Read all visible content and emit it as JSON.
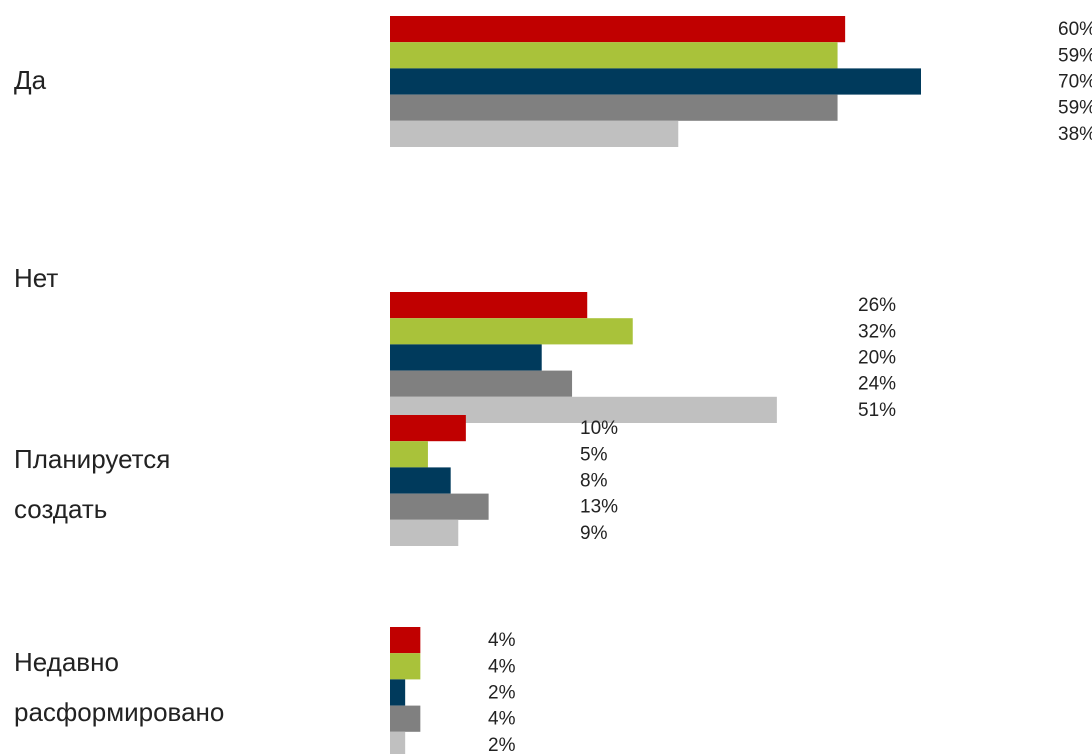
{
  "chart_data": {
    "type": "bar",
    "orientation": "horizontal",
    "categories": [
      "Да",
      "Нет",
      "Планируется создать",
      "Недавно расформировано"
    ],
    "xlim": [
      0,
      70
    ],
    "series": [
      {
        "color": "#c00000",
        "values": [
          60,
          26,
          10,
          4
        ],
        "value_labels": [
          "60%",
          "26%",
          "10%",
          "4%"
        ]
      },
      {
        "color": "#a9c23a",
        "values": [
          59,
          32,
          5,
          4
        ],
        "value_labels": [
          "59%",
          "32%",
          "5%",
          "4%"
        ]
      },
      {
        "color": "#003a5c",
        "values": [
          70,
          20,
          8,
          2
        ],
        "value_labels": [
          "70%",
          "20%",
          "8%",
          "2%"
        ]
      },
      {
        "color": "#808080",
        "values": [
          59,
          24,
          13,
          4
        ],
        "value_labels": [
          "59%",
          "24%",
          "13%",
          "4%"
        ]
      },
      {
        "color": "#c0c0c0",
        "values": [
          38,
          51,
          9,
          2
        ],
        "value_labels": [
          "38%",
          "51%",
          "9%",
          "2%"
        ]
      }
    ]
  }
}
